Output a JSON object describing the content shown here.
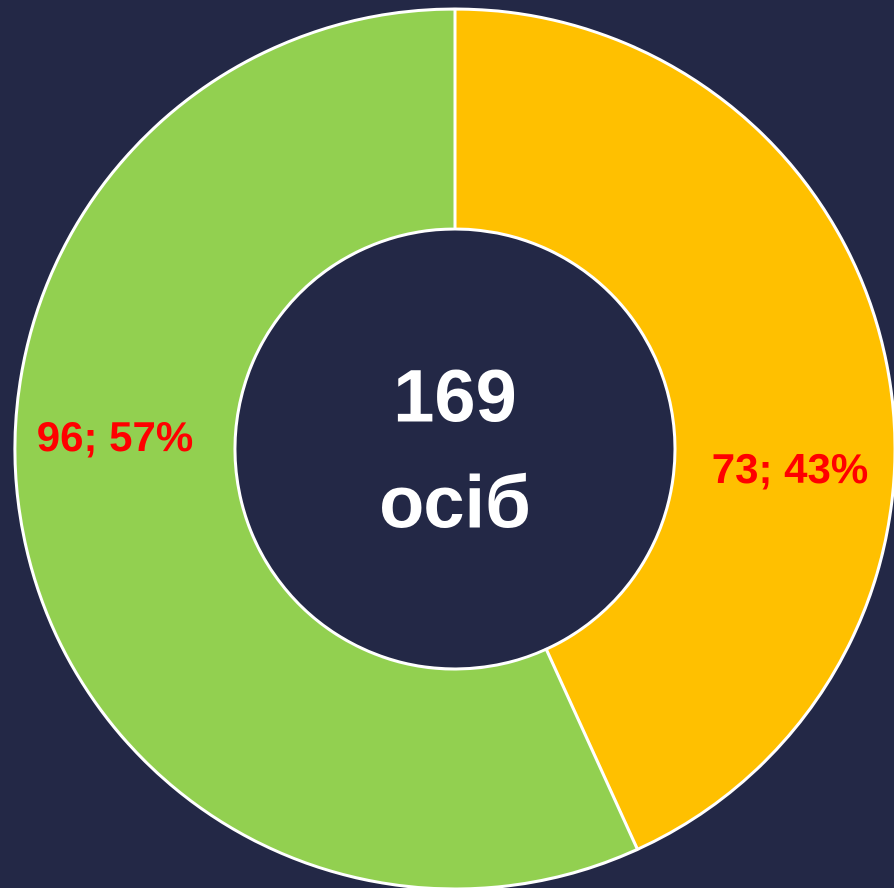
{
  "chart_data": {
    "type": "donut",
    "series": [
      {
        "values": [
          73,
          96
        ],
        "value_labels": [
          "73; 43%",
          "96; 57%"
        ],
        "colors": [
          "#FFC000",
          "#92D050"
        ]
      }
    ],
    "center_text": [
      "169",
      "осіб"
    ],
    "start_angle": 0,
    "direction": "clockwise"
  }
}
